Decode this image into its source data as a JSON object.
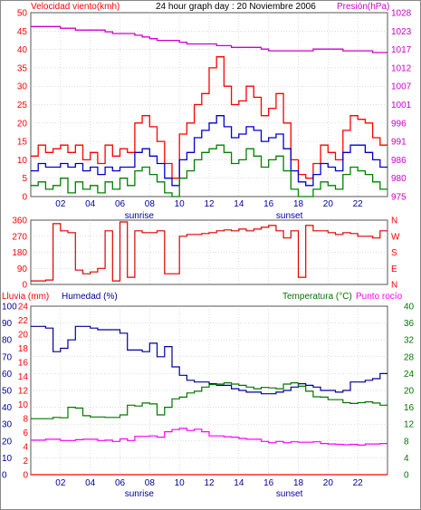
{
  "title": "24 hour graph day : 20 Noviembre 2006",
  "colors": {
    "panel_bg": "#ffffff",
    "border": "#555555",
    "grid": "#bbbbbb",
    "wind_gust": "#ff0000",
    "wind_avg": "#0000cc",
    "wind_min": "#008000",
    "pressure": "#cc00cc",
    "direction": "#dd0000",
    "humidity": "#000099",
    "temperature": "#007700",
    "dewpoint": "#ff00ff",
    "rain": "#ff0000",
    "marker": "#888888"
  },
  "x_ticks": [
    "02",
    "04",
    "06",
    "08",
    "10",
    "12",
    "14",
    "16",
    "18",
    "20",
    "22"
  ],
  "sunrise_label": "sunrise",
  "sunset_label": "sunset",
  "chart_data": [
    {
      "type": "line",
      "name": "wind-pressure",
      "left_label": "Velocidad viento(kmh)",
      "right_label": "Presión(hPa)",
      "left_ticks": [
        "0",
        "5",
        "10",
        "15",
        "20",
        "25",
        "30",
        "35",
        "40",
        "45",
        "50"
      ],
      "right_ticks": [
        "975",
        "980",
        "986",
        "991",
        "996",
        "1001",
        "1007",
        "1012",
        "1017",
        "1023",
        "1028"
      ],
      "ylim_left": [
        0,
        50
      ],
      "ylim_right": [
        975,
        1028
      ],
      "x": [
        0,
        0.5,
        1,
        1.5,
        2,
        2.5,
        3,
        3.5,
        4,
        4.5,
        5,
        5.5,
        6,
        6.5,
        7,
        7.5,
        8,
        8.5,
        9,
        9.5,
        10,
        10.5,
        11,
        11.5,
        12,
        12.5,
        13,
        13.5,
        14,
        14.5,
        15,
        15.5,
        16,
        16.5,
        17,
        17.5,
        18,
        18.5,
        19,
        19.5,
        20,
        20.5,
        21,
        21.5,
        22,
        22.5,
        23,
        23.5
      ],
      "series": [
        {
          "color_key": "wind_gust",
          "axis": "left",
          "values": [
            11,
            14,
            12,
            13,
            14,
            12,
            14,
            10,
            12,
            9,
            14,
            11,
            13,
            12,
            20,
            22,
            19,
            15,
            9,
            5,
            17,
            20,
            25,
            28,
            35,
            38,
            30,
            25,
            26,
            30,
            27,
            22,
            24,
            28,
            20,
            10,
            6,
            5,
            9,
            14,
            12,
            10,
            18,
            22,
            21,
            20,
            16,
            14
          ]
        },
        {
          "color_key": "wind_avg",
          "axis": "left",
          "values": [
            7,
            9,
            8,
            8,
            9,
            8,
            9,
            7,
            8,
            6,
            8,
            7,
            8,
            8,
            12,
            13,
            11,
            9,
            5,
            3,
            10,
            12,
            16,
            18,
            20,
            22,
            19,
            16,
            17,
            19,
            18,
            15,
            16,
            17,
            13,
            7,
            4,
            3,
            6,
            9,
            8,
            7,
            12,
            14,
            14,
            12,
            10,
            8
          ]
        },
        {
          "color_key": "wind_min",
          "axis": "left",
          "values": [
            3,
            4,
            2,
            3,
            5,
            1,
            4,
            2,
            3,
            1,
            4,
            2,
            5,
            3,
            7,
            8,
            6,
            4,
            1,
            0,
            5,
            7,
            10,
            12,
            13,
            14,
            12,
            9,
            10,
            13,
            11,
            8,
            10,
            11,
            7,
            2,
            0,
            0,
            2,
            4,
            3,
            2,
            6,
            8,
            7,
            6,
            4,
            2
          ]
        },
        {
          "color_key": "pressure",
          "axis": "right",
          "values": [
            1024,
            1024,
            1024,
            1024,
            1023.5,
            1023.5,
            1023,
            1023,
            1023,
            1023,
            1022.5,
            1022,
            1022,
            1022,
            1021.5,
            1021,
            1020.5,
            1020,
            1020,
            1020,
            1019.5,
            1019,
            1019,
            1019,
            1019,
            1018.5,
            1018.5,
            1018,
            1018,
            1018,
            1018,
            1017.5,
            1017,
            1017,
            1017,
            1017,
            1017,
            1017,
            1017.5,
            1017.5,
            1017.5,
            1017.5,
            1017,
            1017,
            1017,
            1017,
            1016.5,
            1016.5
          ]
        }
      ]
    },
    {
      "type": "line",
      "name": "wind-direction",
      "left_ticks": [
        "0",
        "90",
        "180",
        "270",
        "360"
      ],
      "right_ticks": [
        "N",
        "E",
        "S",
        "W",
        "N"
      ],
      "ylim": [
        0,
        360
      ],
      "x": [
        0,
        0.5,
        1,
        1.5,
        2,
        2.5,
        3,
        3.5,
        4,
        4.5,
        5,
        5.5,
        6,
        6.5,
        7,
        7.5,
        8,
        8.5,
        9,
        9.5,
        10,
        10.5,
        11,
        11.5,
        12,
        12.5,
        13,
        13.5,
        14,
        14.5,
        15,
        15.5,
        16,
        16.5,
        17,
        17.5,
        18,
        18.5,
        19,
        19.5,
        20,
        20.5,
        21,
        21.5,
        22,
        22.5,
        23,
        23.5
      ],
      "series": [
        {
          "color_key": "direction",
          "values": [
            20,
            20,
            25,
            340,
            300,
            290,
            80,
            60,
            70,
            90,
            300,
            20,
            350,
            40,
            300,
            290,
            290,
            300,
            60,
            60,
            270,
            280,
            280,
            285,
            290,
            300,
            305,
            300,
            310,
            300,
            310,
            320,
            330,
            300,
            260,
            300,
            40,
            330,
            300,
            300,
            290,
            280,
            290,
            285,
            270,
            270,
            260,
            300
          ]
        }
      ]
    },
    {
      "type": "line",
      "name": "humidity-temperature",
      "left_label_1": "Lluvia (mm)",
      "left_label_2": "Humedad (%)",
      "right_label_1": "Temperatura (°C)",
      "right_label_2": "Punto rocío",
      "rain_ticks": [
        "0",
        "2",
        "4",
        "6",
        "8",
        "10",
        "12",
        "14",
        "16",
        "18",
        "20",
        "22",
        "24"
      ],
      "humidity_ticks": [
        "0",
        "10",
        "20",
        "30",
        "40",
        "50",
        "60",
        "70",
        "80",
        "90",
        "100"
      ],
      "temp_ticks": [
        "0",
        "4",
        "8",
        "12",
        "16",
        "20",
        "24",
        "28",
        "32",
        "36",
        "40"
      ],
      "ylim_humidity": [
        0,
        100
      ],
      "ylim_temp": [
        0,
        40
      ],
      "x": [
        0,
        0.5,
        1,
        1.5,
        2,
        2.5,
        3,
        3.5,
        4,
        4.5,
        5,
        5.5,
        6,
        6.5,
        7,
        7.5,
        8,
        8.5,
        9,
        9.5,
        10,
        10.5,
        11,
        11.5,
        12,
        12.5,
        13,
        13.5,
        14,
        14.5,
        15,
        15.5,
        16,
        16.5,
        17,
        17.5,
        18,
        18.5,
        19,
        19.5,
        20,
        20.5,
        21,
        21.5,
        22,
        22.5,
        23,
        23.5
      ],
      "series": [
        {
          "color_key": "humidity",
          "axis": "humidity",
          "values": [
            88,
            88,
            87,
            73,
            75,
            80,
            88,
            88,
            87,
            86,
            86,
            86,
            84,
            74,
            74,
            73,
            78,
            70,
            76,
            64,
            59,
            56,
            55,
            55,
            54,
            53,
            53,
            51,
            50,
            49,
            49,
            48,
            48,
            49,
            50,
            52,
            54,
            53,
            52,
            50,
            50,
            49,
            50,
            55,
            55,
            56,
            57,
            60
          ]
        },
        {
          "color_key": "temperature",
          "axis": "temp",
          "values": [
            13.3,
            13.3,
            13.3,
            13.6,
            13.5,
            16,
            15.8,
            14,
            13.7,
            13.7,
            13.6,
            13.6,
            14.2,
            16.5,
            16.3,
            17,
            16.8,
            14.2,
            16,
            18,
            18.4,
            19.4,
            19.8,
            20.8,
            21.4,
            21.5,
            21.8,
            21.5,
            21.2,
            20.8,
            20.4,
            20.7,
            20.6,
            20.4,
            21.5,
            21.8,
            21,
            19.8,
            18.5,
            18.4,
            17.8,
            17.8,
            17.1,
            16.9,
            17.1,
            17.3,
            17.0,
            16.5
          ]
        },
        {
          "color_key": "dewpoint",
          "axis": "temp",
          "values": [
            8.2,
            8.2,
            8.4,
            8.4,
            8.1,
            8.1,
            8.3,
            8.4,
            8.4,
            8.1,
            8.2,
            7.9,
            8.5,
            8.1,
            9.1,
            9.1,
            9.2,
            8.9,
            10.2,
            10.7,
            11.0,
            10.5,
            10.8,
            10.2,
            9.2,
            9.2,
            9.0,
            8.9,
            8.6,
            8.4,
            8.4,
            7.9,
            7.6,
            7.9,
            7.6,
            7.8,
            7.7,
            7.7,
            7.8,
            7.4,
            7.3,
            7.2,
            7.1,
            7.2,
            7.0,
            7.3,
            7.3,
            7.4
          ]
        },
        {
          "color_key": "rain",
          "axis": "humidity",
          "values": [
            0,
            0,
            0,
            0,
            0,
            0,
            0,
            0,
            0,
            0,
            0,
            0,
            0,
            0,
            0,
            0,
            0,
            0,
            0,
            0,
            0,
            0,
            0,
            0,
            0,
            0,
            0,
            0,
            0,
            0,
            0,
            0,
            0,
            0,
            0,
            0,
            0,
            0,
            0,
            0,
            0,
            0,
            0,
            0,
            0,
            0,
            0,
            0
          ]
        }
      ]
    }
  ]
}
